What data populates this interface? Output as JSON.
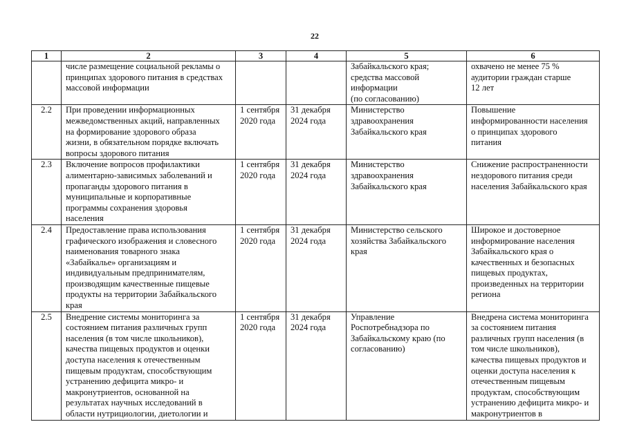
{
  "page_number": "22",
  "table": {
    "headers": [
      "1",
      "2",
      "3",
      "4",
      "5",
      "6"
    ],
    "rows": [
      {
        "num": "",
        "activity": [
          "числе размещение социальной рекламы о",
          "принципах здорового питания в средствах",
          "массовой информации"
        ],
        "start": [],
        "end": [],
        "executor": [
          "Забайкальского края;",
          "средства массовой",
          "информации",
          "(по согласованию)"
        ],
        "result": [
          "охвачено не менее 75 %",
          "аудитории граждан старше",
          "12 лет"
        ]
      },
      {
        "num": "2.2",
        "activity": [
          "При проведении информационных",
          "межведомственных акций, направленных",
          "на формирование здорового образа",
          "жизни, в обязательном порядке включать",
          "вопросы здорового питания"
        ],
        "start": [
          "1 сентября",
          "2020 года"
        ],
        "end": [
          "31 декабря",
          "2024 года"
        ],
        "executor": [
          "Министерство",
          "здравоохранения",
          "Забайкальского края"
        ],
        "result": [
          "Повышение",
          "информированности населения",
          "о принципах здорового",
          "питания"
        ]
      },
      {
        "num": "2.3",
        "activity": [
          "Включение вопросов профилактики",
          "алиментарно-зависимых заболеваний и",
          "пропаганды здорового питания  в",
          "муниципальные и корпоративные",
          "программы сохранения здоровья",
          "населения"
        ],
        "start": [
          "1 сентября",
          "2020 года"
        ],
        "end": [
          "31 декабря",
          "2024 года"
        ],
        "executor": [
          "Министерство",
          "здравоохранения",
          "Забайкальского края"
        ],
        "result": [
          "Снижение распространенности",
          "нездорового питания среди",
          "населения Забайкальского края"
        ]
      },
      {
        "num": "2.4",
        "activity": [
          "Предоставление права использования",
          "графического изображения и словесного",
          "наименования товарного знака",
          "«Забайкалье» организациям и",
          "индивидуальным предпринимателям,",
          "производящим  качественные пищевые",
          "продукты на территории Забайкальского",
          "края"
        ],
        "start": [
          "1 сентября",
          "2020 года"
        ],
        "end": [
          "31 декабря",
          "2024 года"
        ],
        "executor": [
          "Министерство сельского",
          "хозяйства Забайкальского",
          "края"
        ],
        "result": [
          "Широкое и достоверное",
          "информирование населения",
          "Забайкальского края о",
          "качественных и безопасных",
          "пищевых продуктах,",
          "произведенных на территории",
          "региона"
        ]
      },
      {
        "num": "2.5",
        "activity": [
          "Внедрение системы мониторинга за",
          "состоянием питания различных групп",
          "населения (в том числе школьников),",
          "качества пищевых продуктов и оценки",
          "доступа населения к отечественным",
          "пищевым продуктам, способствующим",
          "устранению дефицита микро- и",
          "макронутриентов, основанной на",
          "результатах научных исследований в",
          "области нутрициологии, диетологии и"
        ],
        "start": [
          "1 сентября",
          "2020 года"
        ],
        "end": [
          "31 декабря",
          "2024 года"
        ],
        "executor": [
          "Управление",
          "Роспотребнадзора по",
          "Забайкальскому краю (по",
          "согласованию)"
        ],
        "result": [
          "Внедрена система мониторинга",
          "за состоянием питания",
          "различных групп населения (в",
          "том числе школьников),",
          "качества пищевых продуктов и",
          "оценки доступа населения к",
          "отечественным пищевым",
          "продуктам, способствующим",
          "устранению дефицита микро- и",
          "макронутриентов в"
        ]
      }
    ]
  }
}
